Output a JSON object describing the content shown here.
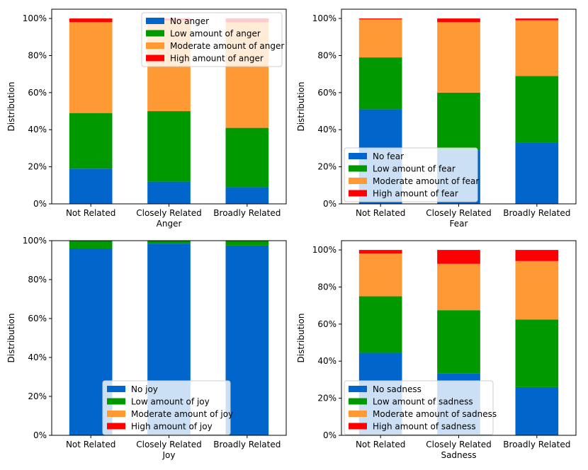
{
  "colors": {
    "no": "#0066cc",
    "low": "#009900",
    "moderate": "#ff9933",
    "high": "#ff0000",
    "axis": "#000000",
    "legend_border": "#cccccc"
  },
  "chart_data": [
    {
      "type": "bar",
      "stacked": true,
      "title": "",
      "xlabel": "Anger",
      "ylabel": "Distribution",
      "ylim": [
        0,
        100
      ],
      "yticks": [
        "0%",
        "20%",
        "40%",
        "60%",
        "80%",
        "100%"
      ],
      "categories": [
        "Not Related",
        "Closely Related",
        "Broadly Related"
      ],
      "legend_position": "upper-center",
      "series": [
        {
          "name": "No anger",
          "key": "no",
          "values": [
            19,
            12,
            9
          ]
        },
        {
          "name": "Low amount of anger",
          "key": "low",
          "values": [
            30,
            38,
            32
          ]
        },
        {
          "name": "Moderate amount of anger",
          "key": "moderate",
          "values": [
            49,
            49,
            57
          ]
        },
        {
          "name": "High amount of anger",
          "key": "high",
          "values": [
            2,
            1,
            2
          ]
        }
      ]
    },
    {
      "type": "bar",
      "stacked": true,
      "title": "",
      "xlabel": "Fear",
      "ylabel": "Distribution",
      "ylim": [
        0,
        100
      ],
      "yticks": [
        "0%",
        "20%",
        "40%",
        "60%",
        "80%",
        "100%"
      ],
      "categories": [
        "Not Related",
        "Closely Related",
        "Broadly Related"
      ],
      "legend_position": "lower-left",
      "series": [
        {
          "name": "No fear",
          "key": "no",
          "values": [
            51,
            29,
            33
          ]
        },
        {
          "name": "Low amount of fear",
          "key": "low",
          "values": [
            28,
            31,
            36
          ]
        },
        {
          "name": "Moderate amount of fear",
          "key": "moderate",
          "values": [
            20.5,
            38,
            30
          ]
        },
        {
          "name": "High amount of fear",
          "key": "high",
          "values": [
            0.5,
            2,
            1
          ]
        }
      ]
    },
    {
      "type": "bar",
      "stacked": true,
      "title": "",
      "xlabel": "Joy",
      "ylabel": "Distribution",
      "ylim": [
        0,
        100
      ],
      "yticks": [
        "0%",
        "20%",
        "40%",
        "60%",
        "80%",
        "100%"
      ],
      "categories": [
        "Not Related",
        "Closely Related",
        "Broadly Related"
      ],
      "legend_position": "lower-center",
      "series": [
        {
          "name": "No joy",
          "key": "no",
          "values": [
            96,
            98.5,
            97.5
          ]
        },
        {
          "name": "Low amount of joy",
          "key": "low",
          "values": [
            4,
            1.5,
            2.5
          ]
        },
        {
          "name": "Moderate amount of joy",
          "key": "moderate",
          "values": [
            0,
            0,
            0
          ]
        },
        {
          "name": "High amount of joy",
          "key": "high",
          "values": [
            0,
            0,
            0
          ]
        }
      ]
    },
    {
      "type": "bar",
      "stacked": true,
      "title": "",
      "xlabel": "Sadness",
      "ylabel": "Distribution",
      "ylim": [
        0,
        100
      ],
      "yticks": [
        "0%",
        "20%",
        "40%",
        "60%",
        "80%",
        "100%"
      ],
      "categories": [
        "Not Related",
        "Closely Related",
        "Broadly Related"
      ],
      "legend_position": "lower-left",
      "series": [
        {
          "name": "No sadness",
          "key": "no",
          "values": [
            44.5,
            33.5,
            26
          ]
        },
        {
          "name": "Low amount of sadness",
          "key": "low",
          "values": [
            30.5,
            34,
            36.5
          ]
        },
        {
          "name": "Moderate amount of sadness",
          "key": "moderate",
          "values": [
            23,
            25,
            31.5
          ]
        },
        {
          "name": "High amount of sadness",
          "key": "high",
          "values": [
            2,
            7.5,
            6
          ]
        }
      ]
    }
  ]
}
